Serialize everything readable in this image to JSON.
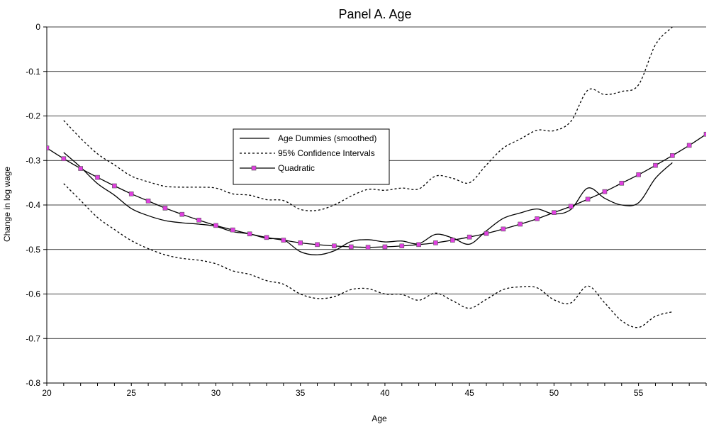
{
  "chart_data": {
    "type": "line",
    "title": "Panel A. Age",
    "xlabel": "Age",
    "ylabel": "Change in log wage",
    "xlim": [
      20,
      59
    ],
    "ylim": [
      -0.8,
      0
    ],
    "x_ticks": [
      20,
      25,
      30,
      35,
      40,
      45,
      50,
      55
    ],
    "y_ticks": [
      0,
      -0.1,
      -0.2,
      -0.3,
      -0.4,
      -0.5,
      -0.6,
      -0.7,
      -0.8
    ],
    "x_tick_labels": [
      "20",
      "25",
      "30",
      "35",
      "40",
      "45",
      "50",
      "55"
    ],
    "y_tick_labels": [
      "0",
      "-0.1",
      "-0.2",
      "-0.3",
      "-0.4",
      "-0.5",
      "-0.6",
      "-0.7",
      "-0.8"
    ],
    "grid": "horizontal",
    "legend_position": "center-left",
    "series": [
      {
        "name": "Age Dummies (smoothed)",
        "style": "solid",
        "color": "#000000",
        "x": [
          21,
          22,
          23,
          24,
          25,
          26,
          27,
          28,
          29,
          30,
          31,
          32,
          33,
          34,
          35,
          36,
          37,
          38,
          39,
          40,
          41,
          42,
          43,
          44,
          45,
          46,
          47,
          48,
          49,
          50,
          51,
          52,
          53,
          54,
          55,
          56,
          57
        ],
        "y": [
          -0.282,
          -0.315,
          -0.352,
          -0.378,
          -0.408,
          -0.424,
          -0.435,
          -0.44,
          -0.443,
          -0.448,
          -0.46,
          -0.465,
          -0.475,
          -0.478,
          -0.505,
          -0.512,
          -0.503,
          -0.482,
          -0.478,
          -0.483,
          -0.481,
          -0.487,
          -0.466,
          -0.474,
          -0.488,
          -0.458,
          -0.43,
          -0.418,
          -0.409,
          -0.42,
          -0.41,
          -0.362,
          -0.385,
          -0.4,
          -0.395,
          -0.34,
          -0.305
        ]
      },
      {
        "name": "95% Confidence Intervals",
        "style": "dashed",
        "color": "#000000",
        "x": [
          21,
          22,
          23,
          24,
          25,
          26,
          27,
          28,
          29,
          30,
          31,
          32,
          33,
          34,
          35,
          36,
          37,
          38,
          39,
          40,
          41,
          42,
          43,
          44,
          45,
          46,
          47,
          48,
          49,
          50,
          51,
          52,
          53,
          54,
          55,
          56,
          57
        ],
        "y": [
          -0.21,
          -0.25,
          -0.285,
          -0.31,
          -0.335,
          -0.348,
          -0.358,
          -0.36,
          -0.36,
          -0.362,
          -0.375,
          -0.378,
          -0.388,
          -0.39,
          -0.41,
          -0.412,
          -0.4,
          -0.38,
          -0.365,
          -0.367,
          -0.362,
          -0.364,
          -0.335,
          -0.34,
          -0.35,
          -0.31,
          -0.272,
          -0.252,
          -0.232,
          -0.233,
          -0.212,
          -0.142,
          -0.152,
          -0.145,
          -0.13,
          -0.04,
          0.0
        ]
      },
      {
        "name": "",
        "style": "dashed",
        "color": "#000000",
        "x": [
          21,
          22,
          23,
          24,
          25,
          26,
          27,
          28,
          29,
          30,
          31,
          32,
          33,
          34,
          35,
          36,
          37,
          38,
          39,
          40,
          41,
          42,
          43,
          44,
          45,
          46,
          47,
          48,
          49,
          50,
          51,
          52,
          53,
          54,
          55,
          56,
          57
        ],
        "y": [
          -0.352,
          -0.39,
          -0.428,
          -0.455,
          -0.48,
          -0.498,
          -0.512,
          -0.52,
          -0.524,
          -0.532,
          -0.548,
          -0.556,
          -0.57,
          -0.578,
          -0.6,
          -0.61,
          -0.606,
          -0.59,
          -0.588,
          -0.6,
          -0.601,
          -0.614,
          -0.598,
          -0.615,
          -0.632,
          -0.612,
          -0.59,
          -0.584,
          -0.586,
          -0.613,
          -0.62,
          -0.582,
          -0.62,
          -0.66,
          -0.675,
          -0.65,
          -0.64
        ]
      },
      {
        "name": "Quadratic",
        "style": "solid-markers",
        "color": "#000000",
        "marker_color": "#e040e0",
        "x": [
          20,
          21,
          22,
          23,
          24,
          25,
          26,
          27,
          28,
          29,
          30,
          31,
          32,
          33,
          34,
          35,
          36,
          37,
          38,
          39,
          40,
          41,
          42,
          43,
          44,
          45,
          46,
          47,
          48,
          49,
          50,
          51,
          52,
          53,
          54,
          55,
          56,
          57,
          58,
          59
        ],
        "y": [
          -0.272,
          -0.296,
          -0.318,
          -0.338,
          -0.357,
          -0.375,
          -0.391,
          -0.407,
          -0.421,
          -0.434,
          -0.446,
          -0.456,
          -0.465,
          -0.473,
          -0.479,
          -0.485,
          -0.489,
          -0.492,
          -0.494,
          -0.495,
          -0.494,
          -0.492,
          -0.489,
          -0.485,
          -0.479,
          -0.472,
          -0.464,
          -0.454,
          -0.443,
          -0.431,
          -0.417,
          -0.403,
          -0.387,
          -0.37,
          -0.351,
          -0.332,
          -0.311,
          -0.289,
          -0.266,
          -0.241
        ]
      }
    ]
  }
}
